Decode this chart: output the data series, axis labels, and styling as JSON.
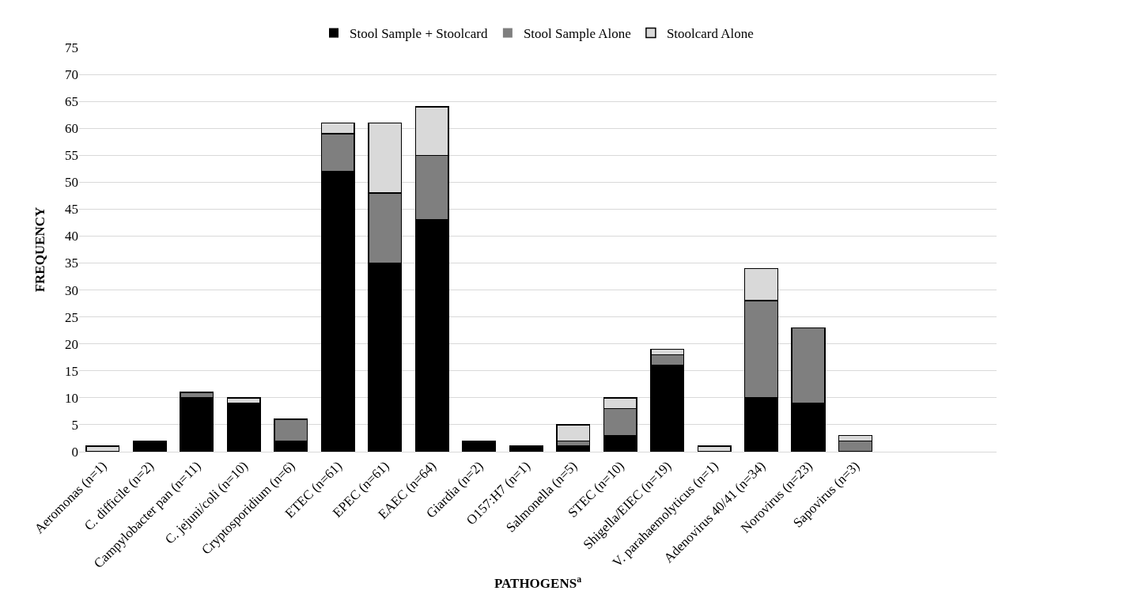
{
  "chart_data": {
    "type": "bar",
    "stacked": true,
    "xlabel": "PATHOGENS$^{a}$",
    "ylabel": "FREQUENCY",
    "categories": [
      "Aeromonas (n=1)",
      "C. difficile (n=2)",
      "Campylobacter pan (n=11)",
      "C. jejuni/coli (n=10)",
      "Cryptosporidium (n=6)",
      "ETEC (n=61)",
      "EPEC (n=61)",
      "EAEC (n=64)",
      "Giardia (n=2)",
      "O157:H7 (n=1)",
      "Salmonella (n=5)",
      "STEC (n=10)",
      "Shigella/EIEC (n=19)",
      "V. parahaemolyticus (n=1)",
      "Adenovirus 40/41 (n=34)",
      "Norovirus (n=23)",
      "Sapovirus (n=3)"
    ],
    "series": [
      {
        "name": "Stool Sample + Stoolcard",
        "color": "#000000",
        "values": [
          0,
          2,
          10,
          9,
          2,
          52,
          35,
          43,
          2,
          1,
          1,
          3,
          16,
          0,
          10,
          9,
          0
        ]
      },
      {
        "name": "Stool Sample Alone",
        "color": "#7f7f7f",
        "values": [
          0,
          0,
          1,
          0,
          4,
          7,
          13,
          12,
          0,
          0,
          1,
          5,
          2,
          0,
          18,
          14,
          2
        ]
      },
      {
        "name": "Stoolcard Alone",
        "color": "#d9d9d9",
        "values": [
          1,
          0,
          0,
          1,
          0,
          2,
          13,
          9,
          0,
          0,
          3,
          2,
          1,
          1,
          6,
          0,
          1
        ]
      }
    ],
    "ylim": [
      0,
      75
    ],
    "yticks": [
      0,
      5,
      10,
      15,
      20,
      25,
      30,
      35,
      40,
      45,
      50,
      55,
      60,
      65,
      70,
      75
    ],
    "grid": "y",
    "legend": "top"
  }
}
